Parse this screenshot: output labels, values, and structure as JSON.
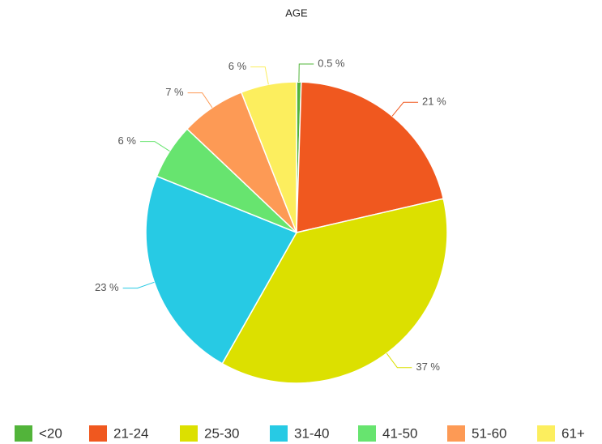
{
  "chart_data": {
    "type": "pie",
    "title": "AGE",
    "categories": [
      "<20",
      "21-24",
      "25-30",
      "31-40",
      "41-50",
      "51-60",
      "61+"
    ],
    "values": [
      0.5,
      21,
      37,
      23,
      6,
      7,
      6
    ],
    "value_labels": [
      "0.5 %",
      "21 %",
      "37 %",
      "23 %",
      "6 %",
      "7 %",
      "6 %"
    ],
    "colors": [
      "#52b43a",
      "#f0581f",
      "#dce000",
      "#27cae4",
      "#67e46f",
      "#fd9a55",
      "#fcee5e"
    ],
    "legend": "bottom"
  }
}
